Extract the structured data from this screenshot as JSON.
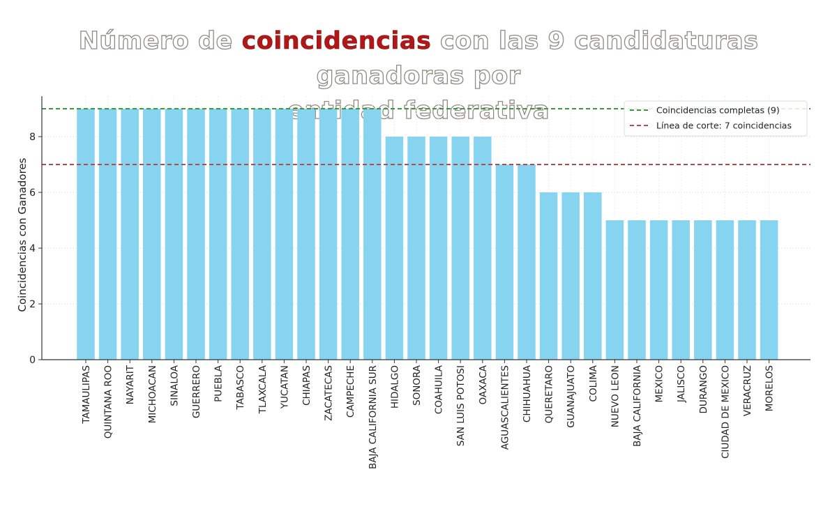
{
  "title": {
    "part1": "Número de ",
    "highlight": "coincidencias",
    "part2": " con las 9 candidaturas ganadoras por",
    "line2": "entidad federativa",
    "highlight_color": "#b01818"
  },
  "chart_data": {
    "type": "bar",
    "ylabel": "Coincidencias con Ganadores",
    "xlabel": "",
    "ylim": [
      0,
      9.45
    ],
    "yticks": [
      0,
      2,
      4,
      6,
      8
    ],
    "bar_color": "#87d4f0",
    "grid": true,
    "legend_position": "top-right",
    "categories": [
      "TAMAULIPAS",
      "QUINTANA ROO",
      "NAYARIT",
      "MICHOACAN",
      "SINALOA",
      "GUERRERO",
      "PUEBLA",
      "TABASCO",
      "TLAXCALA",
      "YUCATAN",
      "CHIAPAS",
      "ZACATECAS",
      "CAMPECHE",
      "BAJA CALIFORNIA SUR",
      "HIDALGO",
      "SONORA",
      "COAHUILA",
      "SAN LUIS POTOSI",
      "OAXACA",
      "AGUASCALIENTES",
      "CHIHUAHUA",
      "QUERETARO",
      "GUANAJUATO",
      "COLIMA",
      "NUEVO LEON",
      "BAJA CALIFORNIA",
      "MEXICO",
      "JALISCO",
      "DURANGO",
      "CIUDAD DE MEXICO",
      "VERACRUZ",
      "MORELOS"
    ],
    "values": [
      9,
      9,
      9,
      9,
      9,
      9,
      9,
      9,
      9,
      9,
      9,
      9,
      9,
      9,
      8,
      8,
      8,
      8,
      8,
      7,
      7,
      6,
      6,
      6,
      5,
      5,
      5,
      5,
      5,
      5,
      5,
      5
    ],
    "reference_lines": [
      {
        "value": 9,
        "label": "Coincidencias completas (9)",
        "color": "#3a9a3a"
      },
      {
        "value": 7,
        "label": "Línea de corte: 7 coincidencias",
        "color": "#b54a4a"
      }
    ]
  }
}
